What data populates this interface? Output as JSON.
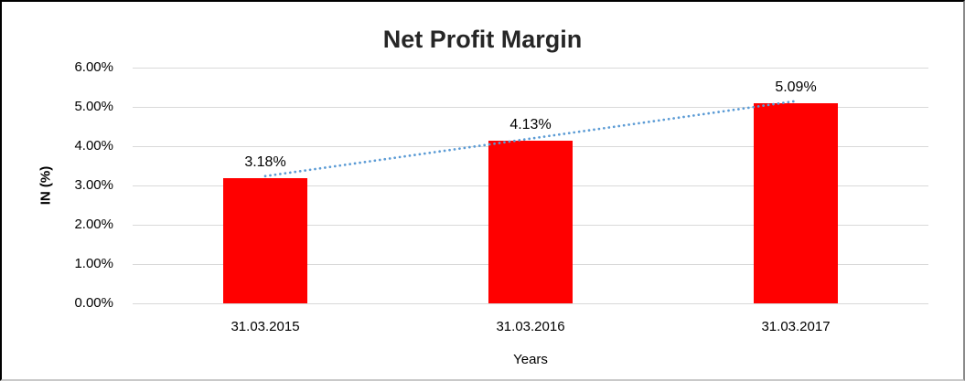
{
  "chart_data": {
    "type": "bar",
    "title": "Net Profit Margin",
    "categories": [
      "31.03.2015",
      "31.03.2016",
      "31.03.2017"
    ],
    "values": [
      3.18,
      4.13,
      5.09
    ],
    "data_labels": [
      "3.18%",
      "4.13%",
      "5.09%"
    ],
    "xlabel": "Years",
    "ylabel": "IN (%)",
    "ylim": [
      0,
      6
    ],
    "ytick_labels": [
      "0.00%",
      "1.00%",
      "2.00%",
      "3.00%",
      "4.00%",
      "5.00%",
      "6.00%"
    ],
    "grid": true,
    "legend": "none",
    "bar_color": "#ff0000",
    "gridline_color": "#d9d9d9",
    "title_color": "#262626",
    "text_color": "#000000",
    "trendline": {
      "type": "linear",
      "style": "dotted",
      "color": "#5b9bd5"
    }
  }
}
